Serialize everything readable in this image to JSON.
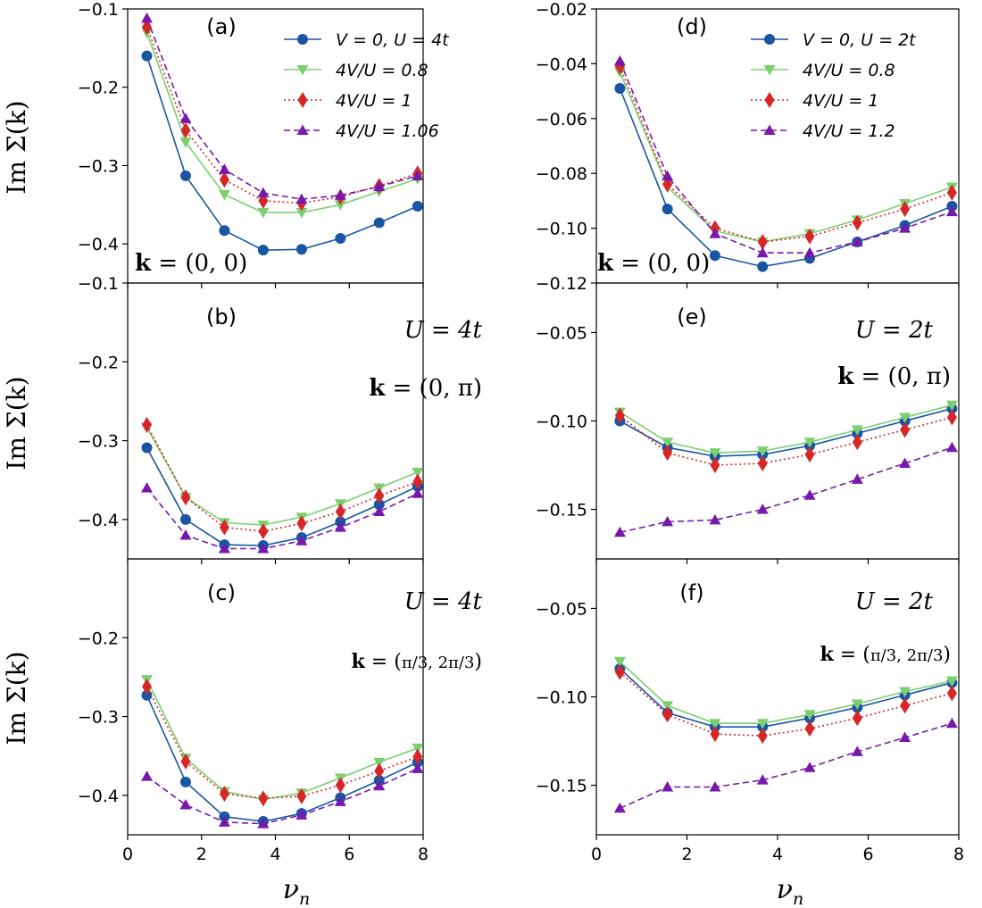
{
  "figure": {
    "ylabel": "Im Σ(k)",
    "xlabel": "ν",
    "xlabel_sub": "n"
  },
  "colors": {
    "blue": "#1a55a3",
    "green": "#7ccf71",
    "red": "#d62728",
    "purple": "#7719aa"
  },
  "chart_data": [
    {
      "id": "a",
      "type": "line",
      "panel_label": "(a)",
      "annotations": [
        "k = (0, 0)"
      ],
      "xlim": [
        0,
        8
      ],
      "ylim": [
        -0.45,
        -0.1
      ],
      "yticks": [
        -0.4,
        -0.3,
        -0.2,
        -0.1
      ],
      "ytick_labels": [
        "−0.4",
        "−0.3",
        "−0.2",
        "−0.1"
      ],
      "xticks": [
        0,
        2,
        4,
        6,
        8
      ],
      "xtick_labels": [
        "0",
        "2",
        "4",
        "6",
        "8"
      ],
      "legend": "top-right",
      "x": [
        0.52,
        1.57,
        2.62,
        3.67,
        4.71,
        5.76,
        6.81,
        7.85
      ],
      "series": [
        {
          "name": "V = 0, U = 4t",
          "color": "blue",
          "marker": "circle",
          "dash": "solid",
          "values": [
            -0.16,
            -0.313,
            -0.383,
            -0.408,
            -0.407,
            -0.393,
            -0.373,
            -0.352
          ]
        },
        {
          "name": "4V/U = 0.8",
          "color": "green",
          "marker": "tri-down",
          "dash": "solid",
          "values": [
            -0.13,
            -0.27,
            -0.337,
            -0.36,
            -0.36,
            -0.35,
            -0.333,
            -0.317
          ]
        },
        {
          "name": "4V/U = 1",
          "color": "red",
          "marker": "diamond",
          "dash": "dotted",
          "values": [
            -0.123,
            -0.255,
            -0.318,
            -0.345,
            -0.348,
            -0.34,
            -0.326,
            -0.31
          ]
        },
        {
          "name": "4V/U = 1.06",
          "color": "purple",
          "marker": "tri-up",
          "dash": "dashed",
          "values": [
            -0.112,
            -0.24,
            -0.305,
            -0.335,
            -0.343,
            -0.338,
            -0.327,
            -0.313
          ]
        }
      ]
    },
    {
      "id": "b",
      "type": "line",
      "panel_label": "(b)",
      "annotations": [
        "U = 4t",
        "k = (0, π)"
      ],
      "xlim": [
        0,
        8
      ],
      "ylim": [
        -0.45,
        -0.1
      ],
      "yticks": [
        -0.4,
        -0.3,
        -0.2,
        -0.1
      ],
      "ytick_labels": [
        "−0.4",
        "−0.3",
        "−0.2",
        "−0.1"
      ],
      "xticks": [
        0,
        2,
        4,
        6,
        8
      ],
      "xtick_labels": [
        "0",
        "2",
        "4",
        "6",
        "8"
      ],
      "x": [
        0.52,
        1.57,
        2.62,
        3.67,
        4.71,
        5.76,
        6.81,
        7.85
      ],
      "series": [
        {
          "color": "blue",
          "marker": "circle",
          "dash": "solid",
          "values": [
            -0.309,
            -0.4,
            -0.432,
            -0.433,
            -0.423,
            -0.403,
            -0.381,
            -0.358
          ]
        },
        {
          "color": "green",
          "marker": "tri-down",
          "dash": "solid",
          "values": [
            -0.283,
            -0.372,
            -0.404,
            -0.407,
            -0.397,
            -0.38,
            -0.36,
            -0.34
          ]
        },
        {
          "color": "red",
          "marker": "diamond",
          "dash": "dotted",
          "values": [
            -0.28,
            -0.372,
            -0.41,
            -0.415,
            -0.405,
            -0.39,
            -0.37,
            -0.352
          ]
        },
        {
          "color": "purple",
          "marker": "tri-up",
          "dash": "dashed",
          "values": [
            -0.36,
            -0.42,
            -0.437,
            -0.437,
            -0.427,
            -0.41,
            -0.39,
            -0.367
          ]
        }
      ]
    },
    {
      "id": "c",
      "type": "line",
      "panel_label": "(c)",
      "annotations": [
        "U = 4t",
        "k = (π/3, 2π/3)"
      ],
      "xlim": [
        0,
        8
      ],
      "ylim": [
        -0.45,
        -0.1
      ],
      "yticks": [
        -0.4,
        -0.3,
        -0.2
      ],
      "ytick_labels": [
        "−0.4",
        "−0.3",
        "−0.2"
      ],
      "xticks": [
        0,
        2,
        4,
        6,
        8
      ],
      "xtick_labels": [
        "0",
        "2",
        "4",
        "6",
        "8"
      ],
      "x": [
        0.52,
        1.57,
        2.62,
        3.67,
        4.71,
        5.76,
        6.81,
        7.85
      ],
      "series": [
        {
          "color": "blue",
          "marker": "circle",
          "dash": "solid",
          "values": [
            -0.273,
            -0.383,
            -0.427,
            -0.433,
            -0.423,
            -0.403,
            -0.381,
            -0.358
          ]
        },
        {
          "color": "green",
          "marker": "tri-down",
          "dash": "solid",
          "values": [
            -0.253,
            -0.353,
            -0.395,
            -0.405,
            -0.397,
            -0.378,
            -0.358,
            -0.34
          ]
        },
        {
          "color": "red",
          "marker": "diamond",
          "dash": "dotted",
          "values": [
            -0.262,
            -0.357,
            -0.398,
            -0.404,
            -0.401,
            -0.387,
            -0.369,
            -0.351
          ]
        },
        {
          "color": "purple",
          "marker": "tri-up",
          "dash": "dashed",
          "values": [
            -0.376,
            -0.412,
            -0.434,
            -0.436,
            -0.425,
            -0.408,
            -0.388,
            -0.366
          ]
        }
      ]
    },
    {
      "id": "d",
      "type": "line",
      "panel_label": "(d)",
      "annotations": [
        "k = (0, 0)"
      ],
      "xlim": [
        0,
        8
      ],
      "ylim": [
        -0.12,
        -0.02
      ],
      "yticks": [
        -0.12,
        -0.1,
        -0.08,
        -0.06,
        -0.04,
        -0.02
      ],
      "ytick_labels": [
        "−0.12",
        "−0.10",
        "−0.08",
        "−0.06",
        "−0.04",
        "−0.02"
      ],
      "xticks": [
        0,
        2,
        4,
        6,
        8
      ],
      "xtick_labels": [
        "0",
        "2",
        "4",
        "6",
        "8"
      ],
      "legend": "top-right",
      "x": [
        0.52,
        1.57,
        2.62,
        3.67,
        4.71,
        5.76,
        6.81,
        7.85
      ],
      "series": [
        {
          "name": "V = 0, U = 2t",
          "color": "blue",
          "marker": "circle",
          "dash": "solid",
          "values": [
            -0.049,
            -0.093,
            -0.11,
            -0.114,
            -0.111,
            -0.105,
            -0.099,
            -0.092
          ]
        },
        {
          "name": "4V/U = 0.8",
          "color": "green",
          "marker": "tri-down",
          "dash": "solid",
          "values": [
            -0.043,
            -0.085,
            -0.101,
            -0.105,
            -0.102,
            -0.097,
            -0.091,
            -0.085
          ]
        },
        {
          "name": "4V/U = 1",
          "color": "red",
          "marker": "diamond",
          "dash": "dotted",
          "values": [
            -0.041,
            -0.084,
            -0.1,
            -0.105,
            -0.103,
            -0.098,
            -0.093,
            -0.087
          ]
        },
        {
          "name": "4V/U = 1.2",
          "color": "purple",
          "marker": "tri-up",
          "dash": "dashed",
          "values": [
            -0.039,
            -0.081,
            -0.102,
            -0.109,
            -0.109,
            -0.105,
            -0.1,
            -0.094
          ]
        }
      ]
    },
    {
      "id": "e",
      "type": "line",
      "panel_label": "(e)",
      "annotations": [
        "U = 2t",
        "k = (0, π)"
      ],
      "xlim": [
        0,
        8
      ],
      "ylim": [
        -0.178,
        -0.022
      ],
      "yticks": [
        -0.15,
        -0.1,
        -0.05
      ],
      "ytick_labels": [
        "−0.15",
        "−0.10",
        "−0.05"
      ],
      "xticks": [
        0,
        2,
        4,
        6,
        8
      ],
      "xtick_labels": [
        "0",
        "2",
        "4",
        "6",
        "8"
      ],
      "x": [
        0.52,
        1.57,
        2.62,
        3.67,
        4.71,
        5.76,
        6.81,
        7.85
      ],
      "series": [
        {
          "color": "blue",
          "marker": "circle",
          "dash": "solid",
          "values": [
            -0.1,
            -0.115,
            -0.12,
            -0.119,
            -0.114,
            -0.107,
            -0.1,
            -0.093
          ]
        },
        {
          "color": "green",
          "marker": "tri-down",
          "dash": "solid",
          "values": [
            -0.095,
            -0.112,
            -0.118,
            -0.117,
            -0.112,
            -0.105,
            -0.098,
            -0.091
          ]
        },
        {
          "color": "red",
          "marker": "diamond",
          "dash": "dotted",
          "values": [
            -0.097,
            -0.118,
            -0.125,
            -0.124,
            -0.119,
            -0.112,
            -0.105,
            -0.098
          ]
        },
        {
          "color": "purple",
          "marker": "tri-up",
          "dash": "dashed",
          "values": [
            -0.163,
            -0.157,
            -0.156,
            -0.15,
            -0.142,
            -0.133,
            -0.124,
            -0.115
          ]
        }
      ]
    },
    {
      "id": "f",
      "type": "line",
      "panel_label": "(f)",
      "annotations": [
        "U = 2t",
        "k = (π/3, 2π/3)"
      ],
      "xlim": [
        0,
        8
      ],
      "ylim": [
        -0.178,
        -0.022
      ],
      "yticks": [
        -0.15,
        -0.1,
        -0.05
      ],
      "ytick_labels": [
        "−0.15",
        "−0.10",
        "−0.05"
      ],
      "xticks": [
        0,
        2,
        4,
        6,
        8
      ],
      "xtick_labels": [
        "0",
        "2",
        "4",
        "6",
        "8"
      ],
      "x": [
        0.52,
        1.57,
        2.62,
        3.67,
        4.71,
        5.76,
        6.81,
        7.85
      ],
      "series": [
        {
          "color": "blue",
          "marker": "circle",
          "dash": "solid",
          "values": [
            -0.084,
            -0.109,
            -0.117,
            -0.117,
            -0.112,
            -0.106,
            -0.099,
            -0.092
          ]
        },
        {
          "color": "green",
          "marker": "tri-down",
          "dash": "solid",
          "values": [
            -0.08,
            -0.105,
            -0.115,
            -0.115,
            -0.11,
            -0.104,
            -0.097,
            -0.091
          ]
        },
        {
          "color": "red",
          "marker": "diamond",
          "dash": "dotted",
          "values": [
            -0.086,
            -0.11,
            -0.121,
            -0.122,
            -0.118,
            -0.112,
            -0.105,
            -0.098
          ]
        },
        {
          "color": "purple",
          "marker": "tri-up",
          "dash": "dashed",
          "values": [
            -0.163,
            -0.151,
            -0.151,
            -0.147,
            -0.14,
            -0.131,
            -0.123,
            -0.115
          ]
        }
      ]
    }
  ]
}
